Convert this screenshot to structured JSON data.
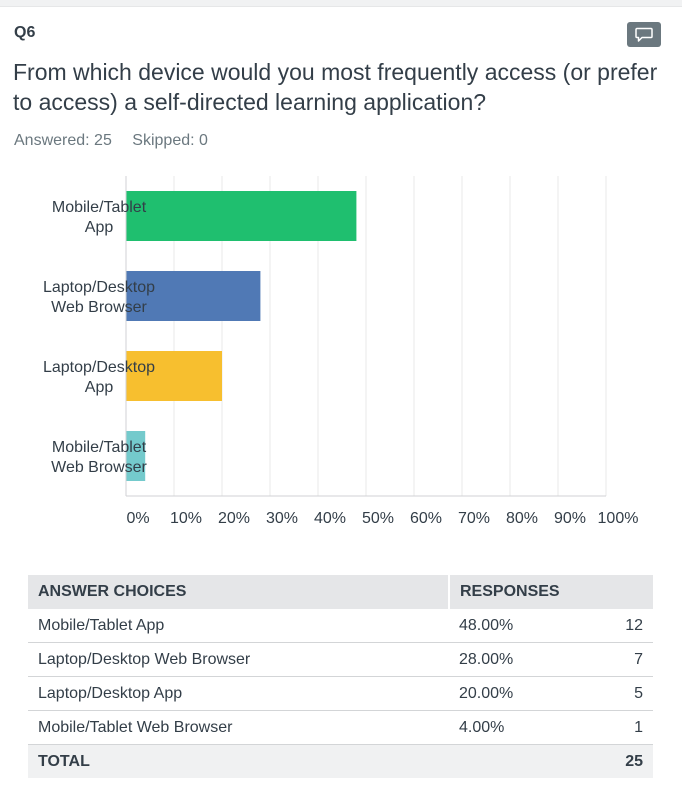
{
  "question": {
    "number": "Q6",
    "title": "From which device would you most frequently access (or prefer to access) a self-directed learning application?",
    "answered_label": "Answered: 25",
    "skipped_label": "Skipped: 0"
  },
  "chart_data": {
    "type": "bar",
    "orientation": "horizontal",
    "categories": [
      [
        "Mobile/Tablet",
        "App"
      ],
      [
        "Laptop/Desktop",
        "Web Browser"
      ],
      [
        "Laptop/Desktop",
        "App"
      ],
      [
        "Mobile/Tablet",
        "Web Browser"
      ]
    ],
    "values": [
      48,
      28,
      20,
      4
    ],
    "colors": [
      "#1fbf6f",
      "#5079b5",
      "#f7bf2f",
      "#74cacc"
    ],
    "xlim": [
      0,
      100
    ],
    "xticks": [
      "0%",
      "10%",
      "20%",
      "30%",
      "40%",
      "50%",
      "60%",
      "70%",
      "80%",
      "90%",
      "100%"
    ],
    "grid": true,
    "title": "",
    "xlabel": "",
    "ylabel": ""
  },
  "table": {
    "headers": [
      "ANSWER CHOICES",
      "RESPONSES"
    ],
    "rows": [
      {
        "choice": "Mobile/Tablet App",
        "percent": "48.00%",
        "count": "12"
      },
      {
        "choice": "Laptop/Desktop Web Browser",
        "percent": "28.00%",
        "count": "7"
      },
      {
        "choice": "Laptop/Desktop App",
        "percent": "20.00%",
        "count": "5"
      },
      {
        "choice": "Mobile/Tablet Web Browser",
        "percent": "4.00%",
        "count": "1"
      }
    ],
    "total_label": "TOTAL",
    "total_count": "25"
  },
  "colors": {
    "text": "#333e48",
    "muted": "#6b787f",
    "header_bg": "#e5e6e8"
  }
}
